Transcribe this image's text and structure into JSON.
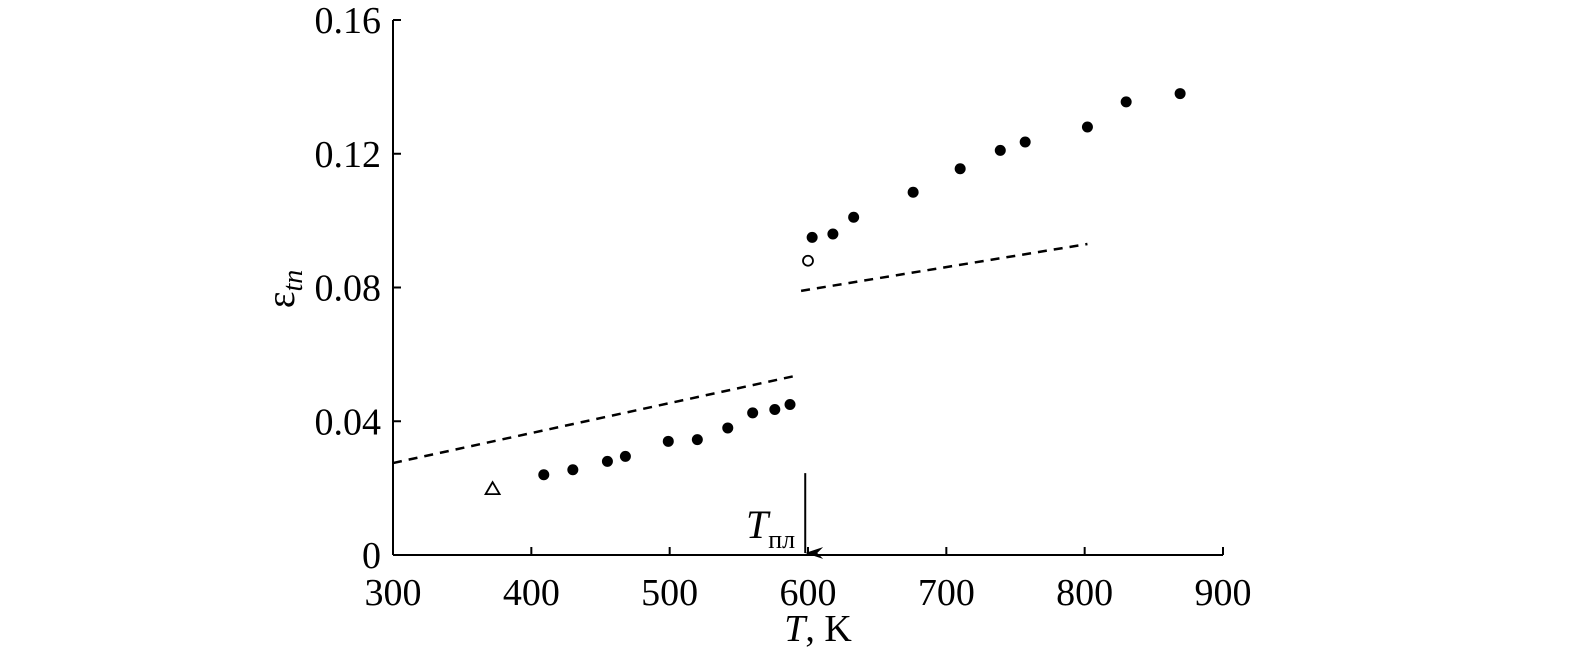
{
  "chart_data": {
    "type": "scatter",
    "x_axis": {
      "label_italic": "T",
      "label_rest": ", K",
      "range": [
        300,
        900
      ],
      "ticks": [
        300,
        400,
        500,
        600,
        700,
        800,
        900
      ],
      "tick_labels": [
        "300",
        "400",
        "500",
        "600",
        "700",
        "800",
        "900"
      ]
    },
    "y_axis": {
      "label_symbol": "ε",
      "label_subscript": "tn",
      "range": [
        0,
        0.16
      ],
      "ticks": [
        0,
        0.04,
        0.08,
        0.12,
        0.16
      ],
      "tick_labels": [
        "0",
        "0.04",
        "0.08",
        "0.12",
        "0.16"
      ]
    },
    "grid": false,
    "legend": "none",
    "series": [
      {
        "marker": "filled-circle",
        "x": [
          409,
          430,
          455,
          468,
          499,
          520,
          542,
          560,
          576,
          587,
          603,
          618,
          633,
          676,
          710,
          739,
          757,
          802,
          830,
          869
        ],
        "y": [
          0.024,
          0.0255,
          0.028,
          0.0295,
          0.034,
          0.0345,
          0.038,
          0.0425,
          0.0435,
          0.045,
          0.095,
          0.096,
          0.101,
          0.1085,
          0.1155,
          0.121,
          0.1235,
          0.128,
          0.1355,
          0.138
        ]
      },
      {
        "marker": "open-circle",
        "x": [
          600
        ],
        "y": [
          0.088
        ]
      },
      {
        "marker": "open-triangle",
        "x": [
          372
        ],
        "y": [
          0.02
        ]
      },
      {
        "line": "dashed",
        "x": [
          300,
          590
        ],
        "y": [
          0.0275,
          0.0535
        ]
      },
      {
        "line": "dashed",
        "x": [
          595,
          802
        ],
        "y": [
          0.079,
          0.093
        ]
      }
    ],
    "annotations": [
      {
        "text_italic": "T",
        "text_subscript": "пл",
        "x": 598,
        "arrow": "down",
        "arrow_from_y": 0.0245,
        "arrow_to_y": 0
      }
    ]
  }
}
